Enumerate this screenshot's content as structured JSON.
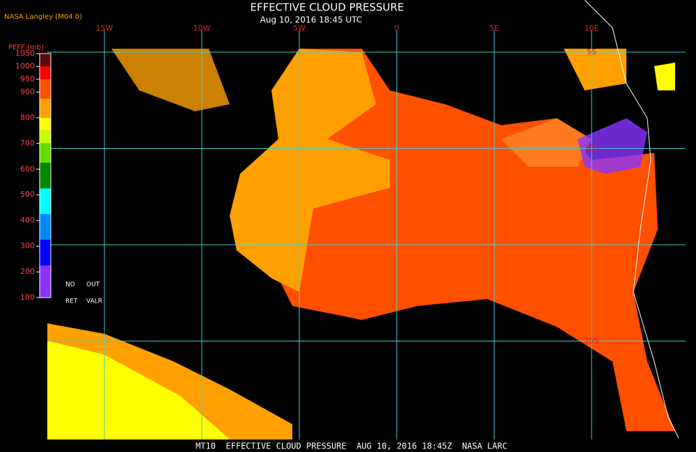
{
  "header": {
    "source": "NASA Langley (M04.0)",
    "title": "EFFECTIVE CLOUD PRESSURE",
    "subtitle": "Aug 10, 2016 18:45 UTC"
  },
  "map": {
    "longitudes": [
      {
        "value": -15,
        "label": "15W"
      },
      {
        "value": -10,
        "label": "10W"
      },
      {
        "value": -5,
        "label": "5W"
      },
      {
        "value": 0,
        "label": "0"
      },
      {
        "value": 5,
        "label": "5E"
      },
      {
        "value": 10,
        "label": "10E"
      }
    ],
    "latitudes": [
      {
        "value": -5,
        "label": "5S"
      },
      {
        "value": -10,
        "label": "10S"
      },
      {
        "value": -15,
        "label": null
      },
      {
        "value": -20,
        "label": "20S"
      }
    ]
  },
  "legend": {
    "title": "PEFF (mb)",
    "ticks": [
      1050,
      1000,
      950,
      900,
      800,
      700,
      600,
      500,
      400,
      300,
      200,
      100
    ],
    "bands": [
      {
        "from": 1050,
        "to": 1000,
        "color": "#5c0a0a"
      },
      {
        "from": 1000,
        "to": 950,
        "color": "#ff0000"
      },
      {
        "from": 950,
        "to": 875,
        "color": "#ff5000"
      },
      {
        "from": 875,
        "to": 800,
        "color": "#ffa000"
      },
      {
        "from": 800,
        "to": 750,
        "color": "#ffff00"
      },
      {
        "from": 750,
        "to": 700,
        "color": "#c8ff00"
      },
      {
        "from": 700,
        "to": 625,
        "color": "#66dd00"
      },
      {
        "from": 625,
        "to": 525,
        "color": "#008800"
      },
      {
        "from": 525,
        "to": 425,
        "color": "#00ffff"
      },
      {
        "from": 425,
        "to": 325,
        "color": "#0088ff"
      },
      {
        "from": 325,
        "to": 225,
        "color": "#0000ff"
      },
      {
        "from": 225,
        "to": 100,
        "color": "#8833ff"
      }
    ],
    "notes": [
      "NO",
      "OUT",
      "RET",
      "VALR"
    ]
  },
  "footer": "MT10  EFFECTIVE CLOUD PRESSURE  AUG 10, 2016 18:45Z  NASA LARC"
}
